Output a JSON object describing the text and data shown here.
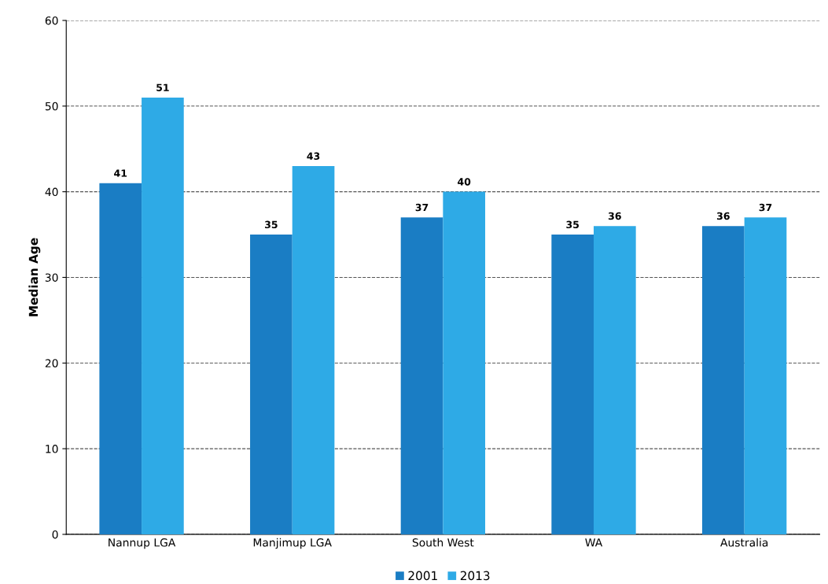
{
  "chart_data": {
    "type": "bar",
    "ylabel": "Median Age",
    "categories": [
      "Nannup LGA",
      "Manjimup LGA",
      "South West",
      "WA",
      "Australia"
    ],
    "series": [
      {
        "name": "2001",
        "color": "#1a7dc4",
        "values": [
          41,
          35,
          37,
          35,
          36
        ]
      },
      {
        "name": "2013",
        "color": "#2eaae6",
        "values": [
          51,
          43,
          40,
          36,
          37
        ]
      }
    ],
    "ylim": [
      0,
      60
    ],
    "yticks": [
      0,
      10,
      20,
      30,
      40,
      50,
      60
    ],
    "grid": "y",
    "legend": "bottom",
    "data_labels": true
  }
}
